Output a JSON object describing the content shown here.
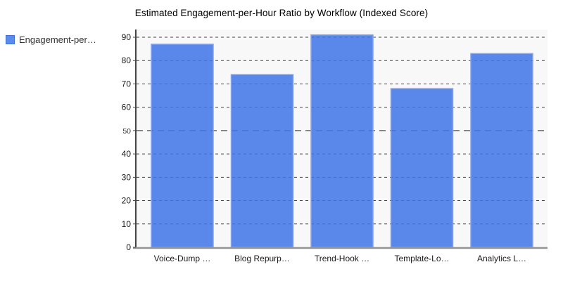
{
  "header": {
    "title": "Estimated Engagement-per-Hour Ratio by Workflow (Indexed Score)"
  },
  "legend": {
    "label": "Engagement-per…",
    "swatch_color": "#5b8ceb",
    "swatch_border_color": "#3f70d8"
  },
  "chart_data": {
    "type": "bar",
    "title": "Estimated Engagement-per-Hour Ratio by Workflow (Indexed Score)",
    "categories": [
      "Voice-Dump …",
      "Blog Repurp…",
      "Trend-Hook …",
      "Template-Lo…",
      "Analytics L…"
    ],
    "series": [
      {
        "name": "Engagement-per…",
        "values": [
          87,
          74,
          91,
          68,
          83
        ]
      }
    ],
    "xlabel": "",
    "ylabel": "",
    "ylim": [
      0,
      93
    ],
    "yticks": [
      0,
      10,
      20,
      30,
      40,
      50,
      60,
      70,
      80,
      90
    ],
    "grid": "dashed-horizontal",
    "reference_line": {
      "value": 50,
      "style": "long-dashed",
      "color": "#6b6b6b"
    },
    "legend_position": "top-left",
    "plot_bg_color": "#f8f8f8",
    "bar_color": "#3d74e8",
    "bar_opacity": 0.85,
    "bar_border_color": "#87a3ea",
    "gridline_color": "#2f2f2f",
    "axis_color": "#444444",
    "baseline_color": "#949494",
    "tick_label_color": "#1a1a1a"
  }
}
